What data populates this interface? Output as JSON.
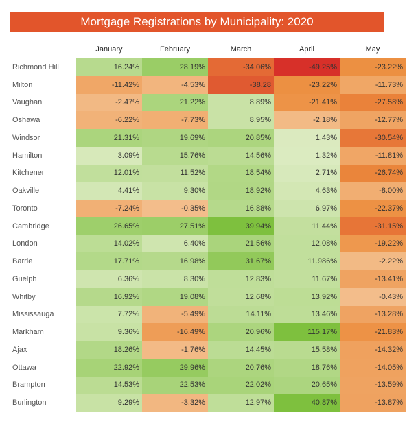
{
  "chart_data": {
    "type": "heatmap",
    "title": "Mortgage Registrations by Municipality: 2020",
    "columns": [
      "January",
      "February",
      "March",
      "April",
      "May"
    ],
    "rows": [
      {
        "name": "Richmond Hill",
        "labels": [
          "16.24%",
          "28.19%",
          "-34.06%",
          "-49.25%",
          "-23.22%"
        ],
        "values": [
          16.24,
          28.19,
          -34.06,
          -49.25,
          -23.22
        ]
      },
      {
        "name": "Milton",
        "labels": [
          "-11.42%",
          "-4.53%",
          "-38.28",
          "-23.22%",
          "-11.73%"
        ],
        "values": [
          -11.42,
          -4.53,
          -38.28,
          -23.22,
          -11.73
        ]
      },
      {
        "name": "Vaughan",
        "labels": [
          "-2.47%",
          "21.22%",
          "8.89%",
          "-21.41%",
          "-27.58%"
        ],
        "values": [
          -2.47,
          21.22,
          8.89,
          -21.41,
          -27.58
        ]
      },
      {
        "name": "Oshawa",
        "labels": [
          "-6.22%",
          "-7.73%",
          "8.95%",
          "-2.18%",
          "-12.77%"
        ],
        "values": [
          -6.22,
          -7.73,
          8.95,
          -2.18,
          -12.77
        ]
      },
      {
        "name": "Windsor",
        "labels": [
          "21.31%",
          "19.69%",
          "20.85%",
          "1.43%",
          "-30.54%"
        ],
        "values": [
          21.31,
          19.69,
          20.85,
          1.43,
          -30.54
        ]
      },
      {
        "name": "Hamilton",
        "labels": [
          "3.09%",
          "15.76%",
          "14.56%",
          "1.32%",
          "-11.81%"
        ],
        "values": [
          3.09,
          15.76,
          14.56,
          1.32,
          -11.81
        ]
      },
      {
        "name": "Kitchener",
        "labels": [
          "12.01%",
          "11.52%",
          "18.54%",
          "2.71%",
          "-26.74%"
        ],
        "values": [
          12.01,
          11.52,
          18.54,
          2.71,
          -26.74
        ]
      },
      {
        "name": "Oakville",
        "labels": [
          "4.41%",
          "9.30%",
          "18.92%",
          "4.63%",
          "-8.00%"
        ],
        "values": [
          4.41,
          9.3,
          18.92,
          4.63,
          -8.0
        ]
      },
      {
        "name": "Toronto",
        "labels": [
          "-7.24%",
          "-0.35%",
          "16.88%",
          "6.97%",
          "-22.37%"
        ],
        "values": [
          -7.24,
          -0.35,
          16.88,
          6.97,
          -22.37
        ]
      },
      {
        "name": "Cambridge",
        "labels": [
          "26.65%",
          "27.51%",
          "39.94%",
          "11.44%",
          "-31.15%"
        ],
        "values": [
          26.65,
          27.51,
          39.94,
          11.44,
          -31.15
        ]
      },
      {
        "name": "London",
        "labels": [
          "14.02%",
          "6.40%",
          "21.56%",
          "12.08%",
          "-19.22%"
        ],
        "values": [
          14.02,
          6.4,
          21.56,
          12.08,
          -19.22
        ]
      },
      {
        "name": "Barrie",
        "labels": [
          "17.71%",
          "16.98%",
          "31.67%",
          "11.986%",
          "-2.22%"
        ],
        "values": [
          17.71,
          16.98,
          31.67,
          11.986,
          -2.22
        ]
      },
      {
        "name": "Guelph",
        "labels": [
          "6.36%",
          "8.30%",
          "12.83%",
          "11.67%",
          "-13.41%"
        ],
        "values": [
          6.36,
          8.3,
          12.83,
          11.67,
          -13.41
        ]
      },
      {
        "name": "Whitby",
        "labels": [
          "16.92%",
          "19.08%",
          "12.68%",
          "13.92%",
          "-0.43%"
        ],
        "values": [
          16.92,
          19.08,
          12.68,
          13.92,
          -0.43
        ]
      },
      {
        "name": "Mississauga",
        "labels": [
          "7.72%",
          "-5.49%",
          "14.11%",
          "13.46%",
          "-13.28%"
        ],
        "values": [
          7.72,
          -5.49,
          14.11,
          13.46,
          -13.28
        ]
      },
      {
        "name": "Markham",
        "labels": [
          "9.36%",
          "-16.49%",
          "20.96%",
          "115.17%",
          "-21.83%"
        ],
        "values": [
          9.36,
          -16.49,
          20.96,
          115.17,
          -21.83
        ]
      },
      {
        "name": "Ajax",
        "labels": [
          "18.26%",
          "-1.76%",
          "14.45%",
          "15.58%",
          "-14.32%"
        ],
        "values": [
          18.26,
          -1.76,
          14.45,
          15.58,
          -14.32
        ]
      },
      {
        "name": "Ottawa",
        "labels": [
          "22.92%",
          "29.96%",
          "20.76%",
          "18.76%",
          "-14.05%"
        ],
        "values": [
          22.92,
          29.96,
          20.76,
          18.76,
          -14.05
        ]
      },
      {
        "name": "Brampton",
        "labels": [
          "14.53%",
          "22.53%",
          "22.02%",
          "20.65%",
          "-13.59%"
        ],
        "values": [
          14.53,
          22.53,
          22.02,
          20.65,
          -13.59
        ]
      },
      {
        "name": "Burlington",
        "labels": [
          "9.29%",
          "-3.32%",
          "12.97%",
          "40.87%",
          "-13.87%"
        ],
        "values": [
          9.29,
          -3.32,
          12.97,
          40.87,
          -13.87
        ]
      }
    ]
  }
}
